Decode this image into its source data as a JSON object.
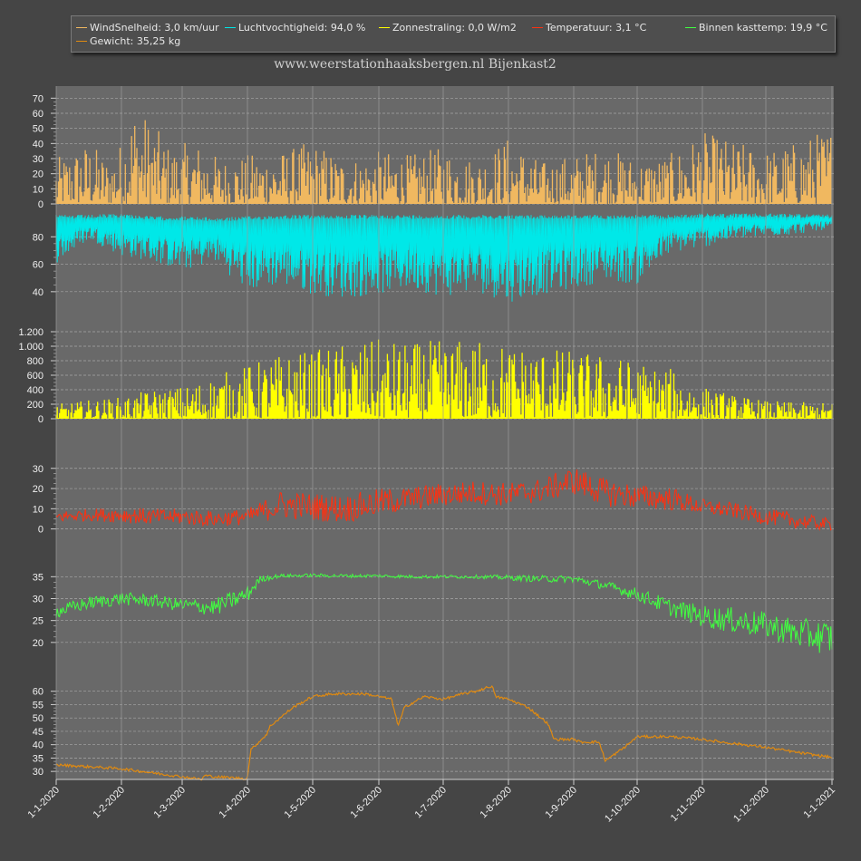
{
  "chart_data": {
    "type": "line",
    "title": "www.weerstationhaaksbergen.nl Bijenkast2",
    "x_labels": [
      "1-1-2020",
      "1-2-2020",
      "1-3-2020",
      "1-4-2020",
      "1-5-2020",
      "1-6-2020",
      "1-7-2020",
      "1-8-2020",
      "1-9-2020",
      "1-10-2020",
      "1-11-2020",
      "1-12-2020",
      "1-1-2021"
    ],
    "legend": [
      {
        "text": "WindSnelheid: 3,0 km/uur",
        "color": "#f0b860"
      },
      {
        "text": "Luchtvochtigheid: 94,0 %",
        "color": "#00e8e8"
      },
      {
        "text": "Zonnestraling: 0,0 W/m2",
        "color": "#ffff00"
      },
      {
        "text": "Temperatuur: 3,1 °C",
        "color": "#ff3010"
      },
      {
        "text": "Binnen kasttemp: 19,9 °C",
        "color": "#40ff40"
      },
      {
        "text": "Gewicht: 35,25 kg",
        "color": "#e08a10"
      }
    ],
    "panels": [
      {
        "name": "WindSnelheid",
        "unit": "km/uur",
        "color": "#f0b860",
        "style": "spiky",
        "ylim": [
          0,
          75
        ],
        "ticks": [
          0,
          10,
          20,
          30,
          40,
          50,
          60,
          70
        ],
        "tick_labels": [
          "0",
          "10",
          "20",
          "30",
          "40",
          "50",
          "60",
          "70"
        ],
        "baseline": 0,
        "envelope_x": [
          0,
          0.5,
          0.8,
          1,
          1.2,
          1.5,
          1.8,
          2.2,
          2.6,
          3,
          3.5,
          4,
          4.5,
          5,
          5.5,
          6,
          6.5,
          7,
          7.5,
          8,
          8.5,
          9,
          9.5,
          10,
          10.5,
          11,
          11.5,
          12
        ],
        "envelope": [
          30,
          42,
          30,
          42,
          68,
          55,
          38,
          42,
          30,
          33,
          35,
          42,
          30,
          35,
          33,
          38,
          30,
          45,
          28,
          33,
          38,
          30,
          33,
          48,
          42,
          36,
          42,
          53
        ]
      },
      {
        "name": "Luchtvochtigheid",
        "unit": "%",
        "color": "#00e8e8",
        "style": "band",
        "ylim": [
          28,
          100
        ],
        "ticks": [
          40,
          60,
          80
        ],
        "tick_labels": [
          "40",
          "60",
          "80"
        ],
        "x": [
          0,
          0.5,
          1,
          1.5,
          2,
          2.5,
          3,
          3.5,
          4,
          4.5,
          5,
          5.5,
          6,
          6.5,
          7,
          7.5,
          8,
          8.5,
          9,
          9.5,
          10,
          10.5,
          11,
          11.5,
          12
        ],
        "high": [
          96,
          96,
          97,
          95,
          95,
          94,
          95,
          96,
          96,
          96,
          96,
          96,
          96,
          96,
          96,
          96,
          96,
          96,
          96,
          96,
          97,
          97,
          97,
          97,
          96
        ],
        "low": [
          60,
          78,
          66,
          62,
          55,
          62,
          40,
          45,
          38,
          35,
          38,
          42,
          36,
          40,
          32,
          38,
          42,
          48,
          45,
          68,
          72,
          78,
          80,
          82,
          86
        ]
      },
      {
        "name": "Zonnestraling",
        "unit": "W/m2",
        "color": "#ffff00",
        "style": "spiky",
        "ylim": [
          0,
          1300
        ],
        "ticks": [
          0,
          200,
          400,
          600,
          800,
          1000,
          1200
        ],
        "tick_labels": [
          "0",
          "200",
          "400",
          "600",
          "800",
          "1.000",
          "1.200"
        ],
        "baseline": 0,
        "envelope_x": [
          0,
          0.5,
          1,
          1.5,
          2,
          2.5,
          3,
          3.5,
          4,
          4.5,
          5,
          5.5,
          6,
          6.5,
          7,
          7.5,
          8,
          8.5,
          9,
          9.5,
          10,
          10.5,
          11,
          11.5,
          12
        ],
        "envelope": [
          200,
          260,
          300,
          400,
          450,
          600,
          750,
          900,
          950,
          1050,
          1100,
          1050,
          1100,
          1100,
          1050,
          1000,
          950,
          900,
          800,
          700,
          450,
          330,
          250,
          230,
          220
        ]
      },
      {
        "name": "Temperatuur",
        "unit": "°C",
        "color": "#ff3010",
        "style": "noisy",
        "ylim": [
          -6,
          42
        ],
        "ticks": [
          0,
          10,
          20,
          30
        ],
        "tick_labels": [
          "0",
          "10",
          "20",
          "30"
        ],
        "x": [
          0,
          0.5,
          1,
          1.5,
          2,
          2.5,
          3,
          3.5,
          4,
          4.5,
          5,
          5.5,
          6,
          6.5,
          7,
          7.5,
          8,
          8.5,
          9,
          9.5,
          10,
          10.5,
          11,
          11.5,
          12
        ],
        "y": [
          6,
          7,
          7,
          6,
          6,
          5,
          6,
          12,
          11,
          10,
          13,
          15,
          17,
          18,
          17,
          19,
          24,
          18,
          16,
          15,
          11,
          9,
          6,
          4,
          2
        ],
        "amp": [
          3,
          3,
          4,
          4,
          4,
          4,
          4,
          7,
          7,
          7,
          7,
          6,
          6,
          6,
          6,
          6,
          7,
          7,
          6,
          6,
          4,
          4,
          4,
          4,
          3
        ]
      },
      {
        "name": "Binnen kasttemp",
        "unit": "°C",
        "color": "#40ff40",
        "style": "noisy",
        "ylim": [
          15,
          39
        ],
        "ticks": [
          20,
          25,
          30,
          35
        ],
        "tick_labels": [
          "20",
          "25",
          "30",
          "35"
        ],
        "x": [
          0,
          0.5,
          1,
          1.5,
          2,
          2.5,
          3,
          3.2,
          3.5,
          4,
          4.5,
          5,
          5.5,
          6,
          6.5,
          7,
          7.5,
          8,
          8.5,
          9,
          9.5,
          10,
          10.5,
          11,
          11.5,
          12
        ],
        "y": [
          27,
          29,
          30,
          29.5,
          28.5,
          28,
          31,
          34.5,
          35.2,
          35.3,
          35.2,
          35.2,
          35,
          35,
          35,
          34.8,
          34.5,
          34.5,
          33,
          31,
          28,
          26,
          25,
          24,
          22,
          21
        ],
        "amp": [
          1.5,
          1.5,
          1.5,
          1.5,
          1.5,
          2,
          2,
          0.8,
          0.4,
          0.4,
          0.4,
          0.4,
          0.4,
          0.4,
          0.4,
          0.6,
          0.8,
          0.8,
          1,
          1.5,
          2,
          2.5,
          3,
          3,
          3.5,
          4
        ]
      },
      {
        "name": "Gewicht",
        "unit": "kg",
        "color": "#e08a10",
        "style": "line",
        "ylim": [
          27,
          66
        ],
        "ticks": [
          30,
          35,
          40,
          45,
          50,
          55,
          60
        ],
        "tick_labels": [
          "30",
          "35",
          "40",
          "45",
          "50",
          "55",
          "60"
        ],
        "x": [
          0,
          1,
          2,
          2.3,
          2.35,
          2.5,
          3,
          3.05,
          3.3,
          3.35,
          3.7,
          4,
          4.3,
          4.8,
          5.2,
          5.3,
          5.4,
          5.7,
          6,
          6.3,
          6.5,
          6.75,
          6.8,
          7,
          7.3,
          7.6,
          7.7,
          8,
          8.1,
          8.4,
          8.5,
          8.8,
          9,
          9.5,
          10,
          10.3,
          11,
          11.5,
          12
        ],
        "y": [
          32.5,
          31,
          28,
          27,
          28.5,
          28,
          27.3,
          38,
          44,
          47,
          54,
          58,
          59,
          59,
          57,
          47,
          54,
          58,
          57,
          59,
          60,
          62,
          58,
          57,
          54,
          48,
          42,
          42,
          41,
          41,
          34,
          39,
          43,
          43,
          42,
          41,
          39,
          37,
          35.25
        ]
      }
    ]
  }
}
